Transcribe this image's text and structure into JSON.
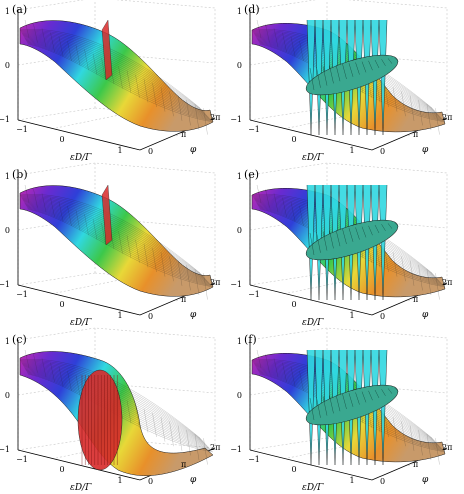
{
  "figure": {
    "panels": [
      {
        "label": "(a)",
        "variant": "smooth-kink",
        "gradient": "rainbow"
      },
      {
        "label": "(b)",
        "variant": "sharp-kink",
        "gradient": "rainbow"
      },
      {
        "label": "(c)",
        "variant": "cylinder",
        "gradient": "rainbow"
      },
      {
        "label": "(d)",
        "variant": "zigzag-flat",
        "gradient": "cyan"
      },
      {
        "label": "(e)",
        "variant": "zigzag-flat",
        "gradient": "cyan"
      },
      {
        "label": "(f)",
        "variant": "zigzag-flat",
        "gradient": "cyan"
      }
    ],
    "z_ticks": [
      "1",
      "0",
      "−1"
    ],
    "x_ticks": [
      "−1",
      "0",
      "1"
    ],
    "y_ticks": [
      "0",
      "π",
      "2π"
    ],
    "x_axis_label": "εD/Γ",
    "y_axis_label": "φ"
  },
  "colors": {
    "magenta": "#c02ab0",
    "purple": "#6a2ad0",
    "blue": "#2e3fd8",
    "cyan": "#30d8e0",
    "green": "#3cc84a",
    "yellow": "#e8d838",
    "orange": "#e8902a",
    "red": "#d82a2a",
    "tan": "#c89a6a",
    "grid": "#c8c8c8",
    "mesh": "#1a1a1a"
  }
}
